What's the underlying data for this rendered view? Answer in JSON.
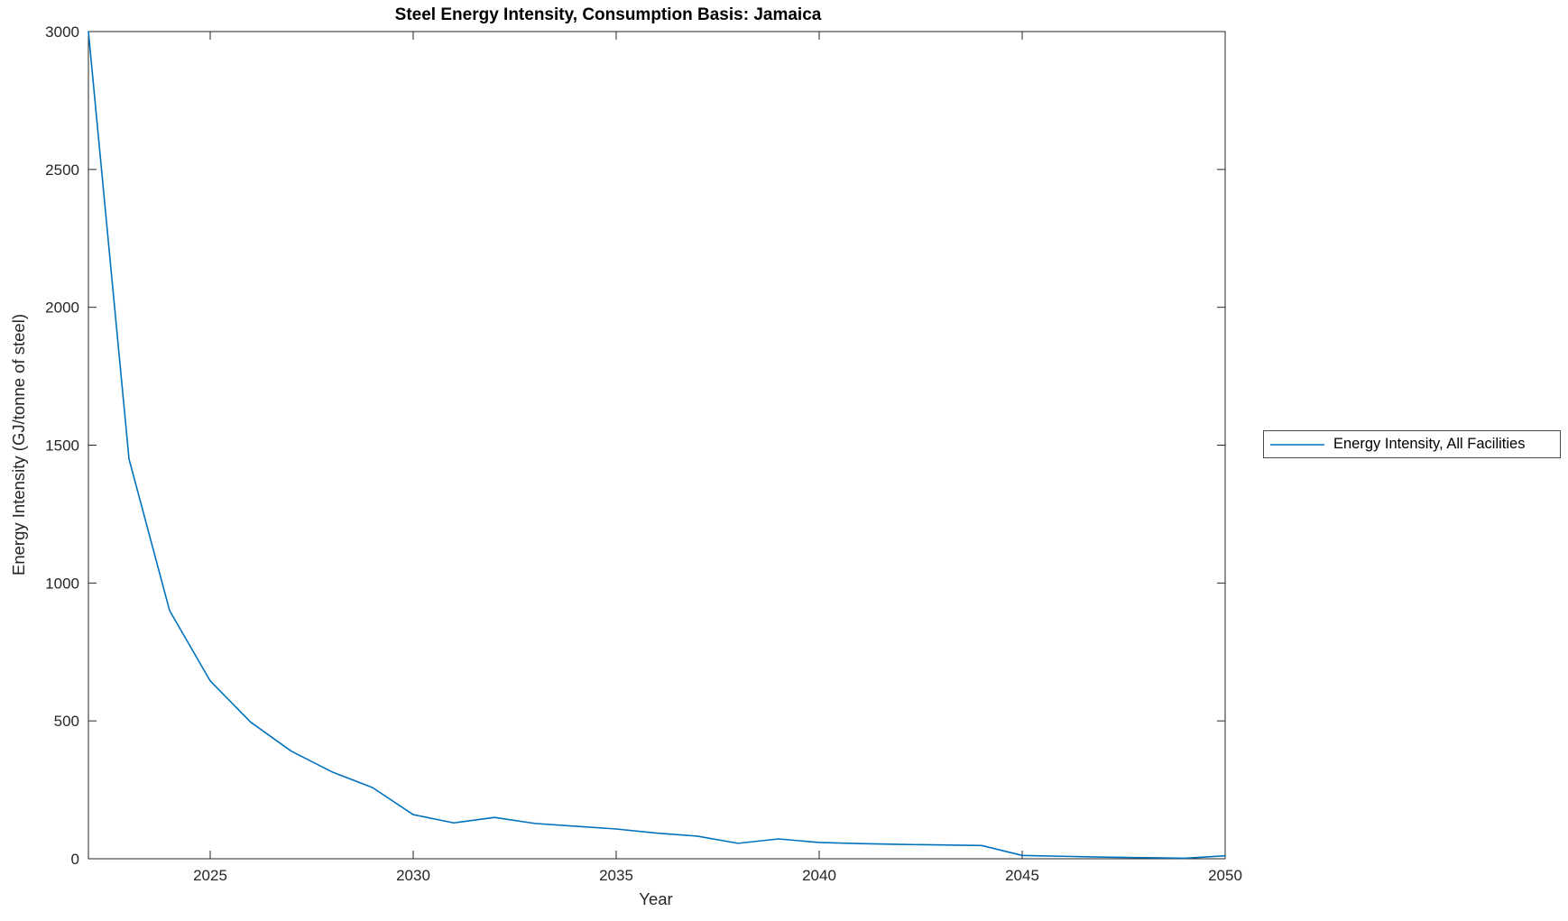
{
  "page": {
    "background": "#ffffff"
  },
  "chart_data": {
    "type": "line",
    "title": "Steel Energy Intensity, Consumption Basis: Jamaica",
    "xlabel": "Year",
    "ylabel": "Energy Intensity (GJ/tonne of steel)",
    "xlim": [
      2022,
      2050
    ],
    "ylim": [
      0,
      3000
    ],
    "xticks": [
      2025,
      2030,
      2035,
      2040,
      2045,
      2050
    ],
    "yticks": [
      0,
      500,
      1000,
      1500,
      2000,
      2500,
      3000
    ],
    "grid": false,
    "box": true,
    "legend_position": "right-outside",
    "line_color": "#0072BD",
    "axis_color": "#262626",
    "series": [
      {
        "name": "Energy Intensity, All Facilities",
        "x": [
          2022,
          2023,
          2024,
          2025,
          2026,
          2027,
          2028,
          2029,
          2030,
          2031,
          2032,
          2033,
          2034,
          2035,
          2036,
          2037,
          2038,
          2039,
          2040,
          2041,
          2042,
          2043,
          2044,
          2045,
          2046,
          2047,
          2048,
          2049,
          2050
        ],
        "y": [
          3000,
          1450,
          900,
          645,
          495,
          390,
          315,
          258,
          160,
          130,
          150,
          128,
          118,
          108,
          93,
          82,
          56,
          72,
          59,
          55,
          52,
          50,
          48,
          12,
          9,
          6,
          4,
          2,
          11
        ]
      }
    ]
  },
  "legend": {
    "entries": [
      {
        "label": "Energy Intensity, All Facilities",
        "color": "#0072BD"
      }
    ]
  }
}
